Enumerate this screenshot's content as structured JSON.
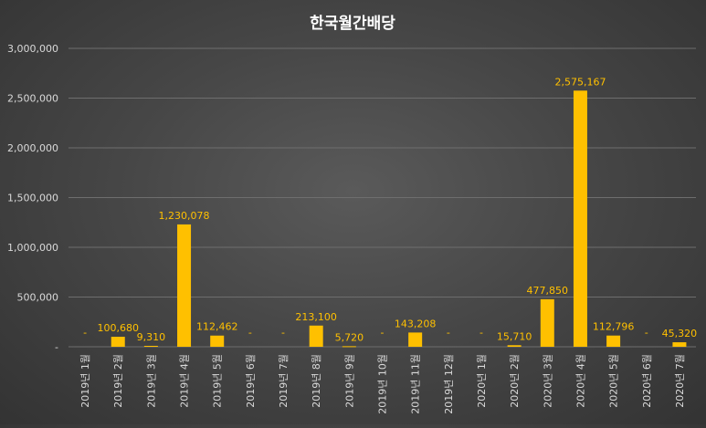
{
  "chart_data": {
    "type": "bar",
    "title": "한국월간배당",
    "categories": [
      "2019년 1월",
      "2019년 2월",
      "2019년 3월",
      "2019년 4월",
      "2019년 5월",
      "2019년 6월",
      "2019년 7월",
      "2019년 8월",
      "2019년 9월",
      "2019년 10월",
      "2019년 11월",
      "2019년 12월",
      "2020년 1월",
      "2020년 2월",
      "2020년 3월",
      "2020년 4월",
      "2020년 5월",
      "2020년 6월",
      "2020년 7월"
    ],
    "values": [
      0,
      100680,
      9310,
      1230078,
      112462,
      0,
      0,
      213100,
      5720,
      0,
      143208,
      0,
      0,
      15710,
      477850,
      2575167,
      112796,
      0,
      45320
    ],
    "data_labels": [
      "-",
      "100,680",
      "9,310",
      "1,230,078",
      "112,462",
      "-",
      "-",
      "213,100",
      "5,720",
      "-",
      "143,208",
      "-",
      "-",
      "15,710",
      "477,850",
      "2,575,167",
      "112,796",
      "-",
      "45,320"
    ],
    "y_ticks": [
      0,
      500000,
      1000000,
      1500000,
      2000000,
      2500000,
      3000000
    ],
    "y_tick_labels": [
      "-",
      "500,000",
      "1,000,000",
      "1,500,000",
      "2,000,000",
      "2,500,000",
      "3,000,000"
    ],
    "ylim": [
      0,
      3000000
    ],
    "grid": true,
    "colors": {
      "bar": "#FFC000",
      "label": "#FFC000",
      "title": "#FFFFFF",
      "axis_text": "#D9D9D9",
      "grid": "#6E6E6E"
    }
  }
}
